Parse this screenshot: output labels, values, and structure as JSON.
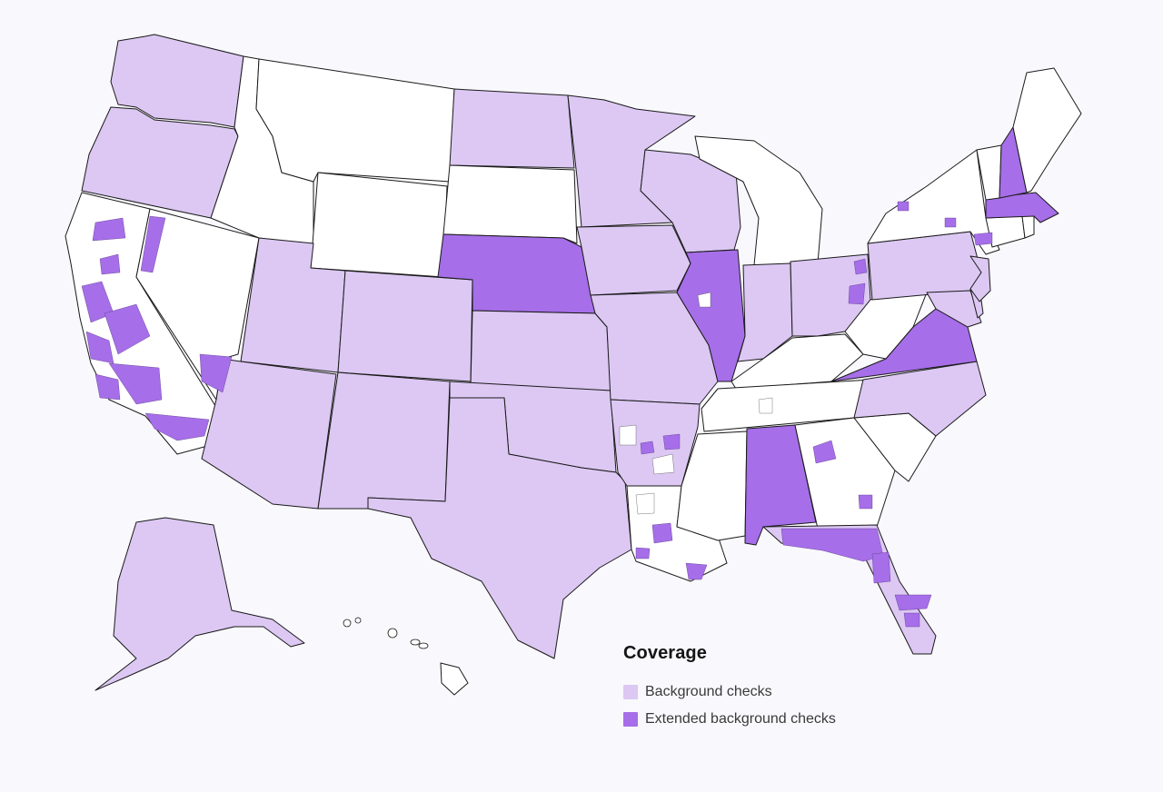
{
  "colors": {
    "background": "#f9f8fc",
    "none": "#ffffff",
    "basic": "#dcc8f3",
    "extended": "#a66ee8",
    "border": "#1a1a1a"
  },
  "legend": {
    "title": "Coverage",
    "items": [
      {
        "label": "Background checks",
        "level": "basic"
      },
      {
        "label": "Extended background checks",
        "level": "extended"
      }
    ]
  },
  "map": {
    "region": "United States",
    "states": [
      {
        "name": "Washington",
        "coverage": "basic"
      },
      {
        "name": "Oregon",
        "coverage": "basic"
      },
      {
        "name": "California",
        "coverage": "mixed"
      },
      {
        "name": "Nevada",
        "coverage": "mixed"
      },
      {
        "name": "Idaho",
        "coverage": "none"
      },
      {
        "name": "Montana",
        "coverage": "none"
      },
      {
        "name": "Wyoming",
        "coverage": "none"
      },
      {
        "name": "Utah",
        "coverage": "basic"
      },
      {
        "name": "Arizona",
        "coverage": "basic"
      },
      {
        "name": "Colorado",
        "coverage": "basic"
      },
      {
        "name": "New Mexico",
        "coverage": "basic"
      },
      {
        "name": "North Dakota",
        "coverage": "basic"
      },
      {
        "name": "South Dakota",
        "coverage": "none"
      },
      {
        "name": "Nebraska",
        "coverage": "extended"
      },
      {
        "name": "Kansas",
        "coverage": "basic"
      },
      {
        "name": "Oklahoma",
        "coverage": "basic"
      },
      {
        "name": "Texas",
        "coverage": "basic"
      },
      {
        "name": "Minnesota",
        "coverage": "basic"
      },
      {
        "name": "Iowa",
        "coverage": "basic"
      },
      {
        "name": "Missouri",
        "coverage": "basic"
      },
      {
        "name": "Arkansas",
        "coverage": "mixed"
      },
      {
        "name": "Louisiana",
        "coverage": "mixed"
      },
      {
        "name": "Wisconsin",
        "coverage": "basic"
      },
      {
        "name": "Illinois",
        "coverage": "extended"
      },
      {
        "name": "Michigan",
        "coverage": "none"
      },
      {
        "name": "Indiana",
        "coverage": "basic"
      },
      {
        "name": "Ohio",
        "coverage": "mixed"
      },
      {
        "name": "Kentucky",
        "coverage": "none"
      },
      {
        "name": "Tennessee",
        "coverage": "mixed"
      },
      {
        "name": "Mississippi",
        "coverage": "none"
      },
      {
        "name": "Alabama",
        "coverage": "extended"
      },
      {
        "name": "Georgia",
        "coverage": "mixed"
      },
      {
        "name": "Florida",
        "coverage": "mixed"
      },
      {
        "name": "South Carolina",
        "coverage": "none"
      },
      {
        "name": "North Carolina",
        "coverage": "basic"
      },
      {
        "name": "Virginia",
        "coverage": "extended"
      },
      {
        "name": "West Virginia",
        "coverage": "none"
      },
      {
        "name": "Pennsylvania",
        "coverage": "basic"
      },
      {
        "name": "New York",
        "coverage": "mixed"
      },
      {
        "name": "Maryland",
        "coverage": "basic"
      },
      {
        "name": "Delaware",
        "coverage": "basic"
      },
      {
        "name": "New Jersey",
        "coverage": "basic"
      },
      {
        "name": "Connecticut",
        "coverage": "none"
      },
      {
        "name": "Rhode Island",
        "coverage": "none"
      },
      {
        "name": "Massachusetts",
        "coverage": "extended"
      },
      {
        "name": "Vermont",
        "coverage": "none"
      },
      {
        "name": "New Hampshire",
        "coverage": "extended"
      },
      {
        "name": "Maine",
        "coverage": "none"
      },
      {
        "name": "Alaska",
        "coverage": "basic"
      },
      {
        "name": "Hawaii",
        "coverage": "none"
      }
    ]
  }
}
